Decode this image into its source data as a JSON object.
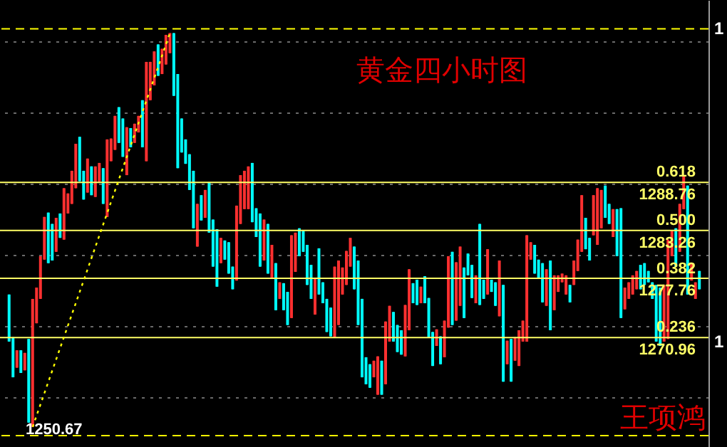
{
  "chart_data": {
    "type": "candlestick",
    "title": "黄金四小时图",
    "categories": [
      null,
      null,
      null,
      null,
      null,
      null,
      null,
      null,
      null,
      null,
      null,
      null,
      null,
      null,
      null,
      null,
      null,
      null,
      null,
      null,
      null,
      null,
      null,
      null,
      null,
      null,
      null,
      null,
      null,
      null,
      null,
      null,
      null,
      null,
      null,
      null,
      null,
      null,
      null,
      null,
      null,
      null,
      null,
      null,
      null,
      null,
      null,
      null,
      null,
      null,
      null,
      null,
      null,
      null,
      null,
      null,
      null,
      null,
      null,
      null,
      null,
      null,
      null,
      null,
      null,
      null,
      null,
      null,
      null,
      null,
      null,
      null,
      null,
      null,
      null,
      null,
      null,
      null,
      null,
      null,
      null,
      null,
      null,
      null,
      null,
      null,
      null,
      null,
      null,
      null,
      null,
      null,
      null,
      null,
      null,
      null,
      null,
      null,
      null,
      null,
      null,
      null,
      null,
      null,
      null,
      null,
      null,
      null,
      null,
      null,
      null,
      null,
      null,
      null,
      null,
      null,
      null,
      null,
      null,
      null,
      null,
      null,
      null,
      null,
      null,
      null,
      null,
      null,
      null,
      null,
      null,
      null,
      null,
      null,
      null,
      null,
      null,
      null,
      null,
      null,
      null,
      null,
      null,
      null,
      null,
      null,
      null,
      null,
      null,
      null,
      null,
      null,
      null,
      null,
      null,
      null,
      null,
      null,
      null,
      null,
      null,
      null,
      null,
      null,
      null,
      null,
      null,
      null,
      null,
      null,
      null,
      null,
      null,
      null,
      null,
      null,
      null
    ],
    "ohlc": [
      [
        1275.9,
        1275.9,
        1270.5,
        1270.5
      ],
      [
        1271.0,
        1271.0,
        1266.4,
        1266.4
      ],
      [
        1267.5,
        1269.5,
        1267.5,
        1269.5
      ],
      [
        1269.5,
        1269.5,
        1266.9,
        1266.9
      ],
      [
        1267.2,
        1269.2,
        1267.2,
        1269.2
      ],
      [
        1270.8,
        1270.8,
        1261.2,
        1261.2
      ],
      [
        1260.7,
        1275.4,
        1260.7,
        1275.4
      ],
      [
        1272.6,
        1276.7,
        1272.6,
        1276.7
      ],
      [
        1275.4,
        1280.3,
        1275.4,
        1280.3
      ],
      [
        1279.9,
        1284.8,
        1279.9,
        1284.8
      ],
      [
        1285.3,
        1285.3,
        1279.5,
        1279.5
      ],
      [
        1284.0,
        1284.0,
        1279.8,
        1279.8
      ],
      [
        1280.8,
        1284.7,
        1280.8,
        1284.7
      ],
      [
        1285.2,
        1285.2,
        1282.4,
        1282.4
      ],
      [
        1282.2,
        1288.1,
        1282.2,
        1288.1
      ],
      [
        1285.2,
        1287.5,
        1285.2,
        1287.5
      ],
      [
        1286.3,
        1290.1,
        1286.3,
        1290.1
      ],
      [
        1288.1,
        1293.2,
        1288.1,
        1293.2
      ],
      [
        1294.0,
        1294.0,
        1288.9,
        1288.9
      ],
      [
        1290.1,
        1290.1,
        1286.8,
        1286.8
      ],
      [
        1287.6,
        1291.5,
        1287.6,
        1291.5
      ],
      [
        1290.6,
        1290.6,
        1287.3,
        1287.3
      ],
      [
        1287.1,
        1290.6,
        1287.1,
        1290.6
      ],
      [
        1288.8,
        1291.0,
        1288.8,
        1291.0
      ],
      [
        1290.4,
        1290.4,
        1286.3,
        1286.3
      ],
      [
        1284.8,
        1293.7,
        1284.8,
        1293.7
      ],
      [
        1291.2,
        1293.8,
        1291.2,
        1293.8
      ],
      [
        1292.5,
        1296.4,
        1292.5,
        1296.4
      ],
      [
        1297.4,
        1297.4,
        1293.3,
        1293.3
      ],
      [
        1296.1,
        1296.1,
        1291.7,
        1291.7
      ],
      [
        1289.6,
        1295.1,
        1289.6,
        1295.1
      ],
      [
        1295.0,
        1295.0,
        1292.8,
        1292.8
      ],
      [
        1293.3,
        1295.5,
        1293.3,
        1295.5
      ],
      [
        1294.5,
        1296.4,
        1294.5,
        1296.4
      ],
      [
        1298.2,
        1298.2,
        1292.8,
        1292.8
      ],
      [
        1291.2,
        1302.6,
        1291.2,
        1302.6
      ],
      [
        1298.2,
        1302.6,
        1298.2,
        1302.6
      ],
      [
        1299.9,
        1303.8,
        1299.9,
        1303.8
      ],
      [
        1304.6,
        1304.6,
        1301.0,
        1301.0
      ],
      [
        1301.2,
        1304.1,
        1301.2,
        1304.1
      ],
      [
        1302.3,
        1305.7,
        1302.3,
        1305.7
      ],
      [
        1303.6,
        1305.9,
        1303.6,
        1305.9
      ],
      [
        1305.9,
        1305.9,
        1298.7,
        1298.7
      ],
      [
        1301.2,
        1301.2,
        1290.4,
        1290.4
      ],
      [
        1296.1,
        1296.1,
        1292.2,
        1292.2
      ],
      [
        1293.7,
        1293.7,
        1290.9,
        1290.9
      ],
      [
        1292.0,
        1292.0,
        1287.9,
        1287.9
      ],
      [
        1290.1,
        1290.1,
        1283.5,
        1283.5
      ],
      [
        1281.4,
        1286.3,
        1281.4,
        1286.3
      ],
      [
        1287.3,
        1287.3,
        1284.4,
        1284.4
      ],
      [
        1284.7,
        1287.9,
        1284.7,
        1287.9
      ],
      [
        1288.8,
        1288.8,
        1283.0,
        1283.0
      ],
      [
        1284.5,
        1284.5,
        1279.1,
        1279.1
      ],
      [
        1283.4,
        1283.4,
        1276.8,
        1276.8
      ],
      [
        1279.5,
        1282.4,
        1279.5,
        1282.4
      ],
      [
        1282.1,
        1282.1,
        1279.9,
        1279.9
      ],
      [
        1281.9,
        1281.9,
        1278.3,
        1278.3
      ],
      [
        1279.1,
        1279.1,
        1276.5,
        1276.5
      ],
      [
        1277.5,
        1286.1,
        1277.5,
        1286.1
      ],
      [
        1284.0,
        1289.6,
        1284.0,
        1289.6
      ],
      [
        1285.7,
        1290.1,
        1285.7,
        1290.1
      ],
      [
        1285.7,
        1290.6,
        1285.7,
        1290.6
      ],
      [
        1291.0,
        1291.0,
        1284.2,
        1284.2
      ],
      [
        1285.8,
        1285.8,
        1282.5,
        1282.5
      ],
      [
        1285.2,
        1285.2,
        1279.1,
        1279.1
      ],
      [
        1279.8,
        1284.5,
        1279.8,
        1284.5
      ],
      [
        1284.0,
        1284.0,
        1278.3,
        1278.3
      ],
      [
        1277.8,
        1281.6,
        1277.8,
        1281.6
      ],
      [
        1279.5,
        1279.5,
        1274.1,
        1274.1
      ],
      [
        1275.4,
        1277.3,
        1275.4,
        1277.3
      ],
      [
        1277.2,
        1277.2,
        1274.1,
        1274.1
      ],
      [
        1276.2,
        1276.2,
        1272.4,
        1272.4
      ],
      [
        1273.2,
        1282.7,
        1273.2,
        1282.7
      ],
      [
        1278.5,
        1283.0,
        1278.5,
        1283.0
      ],
      [
        1283.5,
        1283.5,
        1280.3,
        1280.3
      ],
      [
        1283.2,
        1283.2,
        1280.8,
        1280.8
      ],
      [
        1281.6,
        1281.6,
        1277.0,
        1277.0
      ],
      [
        1279.3,
        1279.3,
        1275.4,
        1275.4
      ],
      [
        1273.6,
        1277.8,
        1273.6,
        1277.8
      ],
      [
        1281.2,
        1281.2,
        1275.9,
        1275.9
      ],
      [
        1277.3,
        1277.3,
        1274.9,
        1274.9
      ],
      [
        1275.4,
        1275.4,
        1271.6,
        1271.6
      ],
      [
        1274.4,
        1274.4,
        1271.1,
        1271.1
      ],
      [
        1271.0,
        1279.1,
        1271.0,
        1279.1
      ],
      [
        1272.4,
        1279.8,
        1272.4,
        1279.8
      ],
      [
        1275.9,
        1279.0,
        1275.9,
        1279.0
      ],
      [
        1277.0,
        1280.9,
        1277.0,
        1280.9
      ],
      [
        1279.1,
        1282.4,
        1279.1,
        1282.4
      ],
      [
        1281.4,
        1281.4,
        1276.5,
        1276.5
      ],
      [
        1279.8,
        1279.8,
        1272.4,
        1272.4
      ],
      [
        1275.4,
        1275.4,
        1266.4,
        1266.4
      ],
      [
        1268.7,
        1268.7,
        1265.6,
        1265.6
      ],
      [
        1267.9,
        1267.9,
        1265.2,
        1265.2
      ],
      [
        1266.4,
        1268.3,
        1266.4,
        1268.3
      ],
      [
        1264.4,
        1268.8,
        1264.4,
        1268.8
      ],
      [
        1268.3,
        1268.3,
        1264.4,
        1264.4
      ],
      [
        1265.6,
        1272.8,
        1265.6,
        1272.8
      ],
      [
        1270.5,
        1274.6,
        1270.5,
        1274.6
      ],
      [
        1273.9,
        1273.9,
        1270.5,
        1270.5
      ],
      [
        1272.4,
        1272.4,
        1269.3,
        1269.3
      ],
      [
        1271.8,
        1271.8,
        1269.0,
        1269.0
      ],
      [
        1268.8,
        1274.7,
        1268.8,
        1274.7
      ],
      [
        1271.8,
        1278.8,
        1271.8,
        1278.8
      ],
      [
        1277.2,
        1277.2,
        1274.9,
        1274.9
      ],
      [
        1277.6,
        1277.6,
        1274.7,
        1274.7
      ],
      [
        1274.9,
        1276.8,
        1274.9,
        1276.8
      ],
      [
        1278.0,
        1278.0,
        1274.9,
        1274.9
      ],
      [
        1275.5,
        1275.5,
        1271.0,
        1271.0
      ],
      [
        1271.6,
        1271.6,
        1267.7,
        1267.7
      ],
      [
        1270.0,
        1271.9,
        1270.0,
        1271.9
      ],
      [
        1271.1,
        1271.1,
        1267.9,
        1267.9
      ],
      [
        1268.7,
        1272.9,
        1268.7,
        1272.9
      ],
      [
        1272.1,
        1280.3,
        1272.1,
        1280.3
      ],
      [
        1280.8,
        1280.8,
        1272.4,
        1272.4
      ],
      [
        1272.9,
        1279.6,
        1272.9,
        1279.6
      ],
      [
        1274.6,
        1281.4,
        1274.6,
        1281.4
      ],
      [
        1279.0,
        1279.0,
        1273.2,
        1273.2
      ],
      [
        1280.6,
        1280.6,
        1278.1,
        1278.1
      ],
      [
        1279.3,
        1279.3,
        1275.5,
        1275.5
      ],
      [
        1274.9,
        1278.1,
        1274.9,
        1278.1
      ],
      [
        1284.0,
        1284.0,
        1274.7,
        1274.7
      ],
      [
        1277.6,
        1277.6,
        1275.4,
        1275.4
      ],
      [
        1275.9,
        1281.1,
        1275.9,
        1281.1
      ],
      [
        1277.6,
        1277.6,
        1276.2,
        1276.2
      ],
      [
        1277.3,
        1277.3,
        1274.6,
        1274.6
      ],
      [
        1273.4,
        1279.8,
        1273.4,
        1279.8
      ],
      [
        1277.0,
        1277.0,
        1265.9,
        1265.9
      ],
      [
        1267.9,
        1270.6,
        1267.9,
        1270.6
      ],
      [
        1270.8,
        1270.8,
        1265.9,
        1265.9
      ],
      [
        1268.3,
        1271.0,
        1268.3,
        1271.0
      ],
      [
        1267.7,
        1271.8,
        1267.7,
        1271.8
      ],
      [
        1270.5,
        1272.9,
        1270.5,
        1272.9
      ],
      [
        1270.5,
        1282.7,
        1270.5,
        1282.7
      ],
      [
        1279.9,
        1281.9,
        1279.9,
        1281.9
      ],
      [
        1281.6,
        1281.6,
        1278.3,
        1278.3
      ],
      [
        1279.9,
        1279.9,
        1277.8,
        1277.8
      ],
      [
        1279.5,
        1279.5,
        1275.0,
        1275.0
      ],
      [
        1274.6,
        1278.8,
        1274.6,
        1278.8
      ],
      [
        1279.8,
        1279.8,
        1271.8,
        1271.8
      ],
      [
        1274.1,
        1278.1,
        1274.1,
        1278.1
      ],
      [
        1276.2,
        1278.1,
        1276.2,
        1278.1
      ],
      [
        1277.3,
        1278.3,
        1277.3,
        1278.3
      ],
      [
        1275.9,
        1278.1,
        1275.9,
        1278.1
      ],
      [
        1277.0,
        1277.0,
        1275.0,
        1275.0
      ],
      [
        1277.0,
        1279.8,
        1277.0,
        1279.8
      ],
      [
        1278.6,
        1282.2,
        1278.6,
        1282.2
      ],
      [
        1280.8,
        1287.3,
        1280.8,
        1287.3
      ],
      [
        1284.7,
        1284.7,
        1281.1,
        1281.1
      ],
      [
        1282.4,
        1282.4,
        1279.8,
        1279.8
      ],
      [
        1282.7,
        1287.3,
        1282.7,
        1287.3
      ],
      [
        1281.6,
        1288.1,
        1281.6,
        1288.1
      ],
      [
        1283.5,
        1287.9,
        1283.5,
        1287.9
      ],
      [
        1288.4,
        1288.4,
        1284.7,
        1284.7
      ],
      [
        1286.3,
        1286.3,
        1284.0,
        1284.0
      ],
      [
        1282.5,
        1285.7,
        1282.5,
        1285.7
      ],
      [
        1285.7,
        1285.7,
        1280.3,
        1280.3
      ],
      [
        1285.8,
        1285.8,
        1273.2,
        1273.2
      ],
      [
        1274.2,
        1276.7,
        1274.2,
        1276.7
      ],
      [
        1275.4,
        1277.3,
        1275.4,
        1277.3
      ],
      [
        1275.9,
        1278.1,
        1275.9,
        1278.1
      ],
      [
        1276.5,
        1278.6,
        1276.5,
        1278.6
      ],
      [
        1279.3,
        1279.3,
        1276.5,
        1276.5
      ],
      [
        1279.5,
        1279.5,
        1277.0,
        1277.0
      ],
      [
        1278.6,
        1278.6,
        1277.3,
        1277.3
      ],
      [
        1277.3,
        1277.3,
        1275.4,
        1275.4
      ],
      [
        1277.0,
        1277.0,
        1270.5,
        1270.5
      ],
      [
        1276.7,
        1276.7,
        1270.0,
        1270.0
      ],
      [
        1270.5,
        1277.0,
        1270.5,
        1277.0
      ],
      [
        1270.8,
        1282.2,
        1270.8,
        1282.2
      ],
      [
        1280.3,
        1283.2,
        1280.3,
        1283.2
      ],
      [
        1283.5,
        1283.5,
        1279.1,
        1279.1
      ],
      [
        1280.8,
        1286.3,
        1280.8,
        1286.3
      ],
      [
        1285.7,
        1289.6,
        1285.7,
        1289.6
      ],
      [
        1288.4,
        1288.4,
        1275.9,
        1275.9
      ],
      [
        1277.5,
        1279.5,
        1277.5,
        1279.5
      ],
      [
        1275.4,
        1277.3,
        1275.4,
        1277.3
      ],
      [
        1278.6,
        1278.6,
        1276.5,
        1276.5
      ]
    ],
    "colors": [
      "#00ffff",
      "#00ffff",
      "#ff3030",
      "#00ffff",
      "#ff3030",
      "#00ffff",
      "#ff3030",
      "#ff3030",
      "#ff3030",
      "#ff3030",
      "#00ffff",
      "#00ffff",
      "#ff3030",
      "#00ffff",
      "#ff3030",
      "#ff3030",
      "#ff3030",
      "#ff3030",
      "#00ffff",
      "#00ffff",
      "#ff3030",
      "#00ffff",
      "#ff3030",
      "#ff3030",
      "#00ffff",
      "#ff3030",
      "#ff3030",
      "#ff3030",
      "#00ffff",
      "#00ffff",
      "#ff3030",
      "#00ffff",
      "#ff3030",
      "#ff3030",
      "#00ffff",
      "#ff3030",
      "#ff3030",
      "#ff3030",
      "#00ffff",
      "#ff3030",
      "#ff3030",
      "#ff3030",
      "#00ffff",
      "#00ffff",
      "#00ffff",
      "#00ffff",
      "#00ffff",
      "#00ffff",
      "#ff3030",
      "#00ffff",
      "#ff3030",
      "#00ffff",
      "#00ffff",
      "#00ffff",
      "#ff3030",
      "#00ffff",
      "#00ffff",
      "#00ffff",
      "#ff3030",
      "#ff3030",
      "#ff3030",
      "#ff3030",
      "#00ffff",
      "#00ffff",
      "#00ffff",
      "#ff3030",
      "#00ffff",
      "#ff3030",
      "#00ffff",
      "#ff3030",
      "#00ffff",
      "#00ffff",
      "#ff3030",
      "#ff3030",
      "#00ffff",
      "#00ffff",
      "#00ffff",
      "#00ffff",
      "#ff3030",
      "#00ffff",
      "#00ffff",
      "#00ffff",
      "#00ffff",
      "#ff3030",
      "#ff3030",
      "#ff3030",
      "#ff3030",
      "#ff3030",
      "#00ffff",
      "#00ffff",
      "#00ffff",
      "#00ffff",
      "#00ffff",
      "#ff3030",
      "#ff3030",
      "#00ffff",
      "#ff3030",
      "#ff3030",
      "#00ffff",
      "#00ffff",
      "#00ffff",
      "#ff3030",
      "#ff3030",
      "#00ffff",
      "#00ffff",
      "#ff3030",
      "#00ffff",
      "#00ffff",
      "#00ffff",
      "#ff3030",
      "#00ffff",
      "#ff3030",
      "#ff3030",
      "#00ffff",
      "#ff3030",
      "#ff3030",
      "#00ffff",
      "#00ffff",
      "#00ffff",
      "#ff3030",
      "#00ffff",
      "#00ffff",
      "#ff3030",
      "#00ffff",
      "#00ffff",
      "#ff3030",
      "#00ffff",
      "#ff3030",
      "#00ffff",
      "#ff3030",
      "#ff3030",
      "#ff3030",
      "#ff3030",
      "#ff3030",
      "#00ffff",
      "#00ffff",
      "#00ffff",
      "#ff3030",
      "#00ffff",
      "#ff3030",
      "#ff3030",
      "#ff3030",
      "#ff3030",
      "#00ffff",
      "#ff3030",
      "#ff3030",
      "#ff3030",
      "#00ffff",
      "#00ffff",
      "#ff3030",
      "#ff3030",
      "#ff3030",
      "#00ffff",
      "#00ffff",
      "#ff3030",
      "#00ffff",
      "#00ffff",
      "#ff3030",
      "#ff3030",
      "#ff3030",
      "#ff3030",
      "#00ffff",
      "#00ffff",
      "#00ffff",
      "#00ffff",
      "#00ffff",
      "#00ffff",
      "#ff3030",
      "#ff3030",
      "#ff3030",
      "#00ffff",
      "#ff3030",
      "#ff3030",
      "#00ffff",
      "#ff3030",
      "#ff3030",
      "#00ffff"
    ],
    "series": [
      {
        "type": "line",
        "color": "#ffff00",
        "line_style": "dotted",
        "values": [
          null,
          null,
          null,
          null,
          null,
          null,
          1260.7,
          null,
          null,
          null,
          null,
          null,
          null,
          null,
          null,
          null,
          null,
          null,
          null,
          null,
          null,
          null,
          null,
          null,
          null,
          null,
          null,
          null,
          null,
          null,
          null,
          null,
          null,
          null,
          null,
          null,
          null,
          null,
          null,
          null,
          null,
          1305.9,
          null,
          null,
          null,
          null,
          null,
          null,
          null,
          null,
          null,
          null,
          null,
          null,
          null,
          null,
          null,
          null,
          null,
          null,
          null,
          null,
          null,
          null,
          null,
          null,
          null,
          null,
          null,
          null,
          null,
          null,
          null,
          null,
          null,
          null,
          null,
          null,
          null,
          null,
          null,
          null,
          null,
          null,
          null,
          null,
          null,
          null,
          null,
          null,
          null,
          null,
          null,
          null,
          null,
          null,
          null,
          null,
          null,
          null,
          null,
          null,
          null,
          null,
          null,
          null,
          null,
          null,
          null,
          null,
          null,
          null,
          null,
          null,
          null,
          null,
          null,
          null,
          null,
          null,
          null,
          null,
          null,
          null,
          null,
          null,
          null,
          null,
          null,
          null,
          null,
          null,
          null,
          null,
          null,
          null,
          null,
          null,
          null,
          null,
          null,
          null,
          null,
          null,
          null,
          null,
          null,
          null,
          null,
          null,
          null,
          null,
          null,
          null,
          null,
          null,
          null,
          null,
          null,
          null,
          null,
          null,
          null,
          null,
          null,
          null,
          null,
          null,
          null,
          null,
          null,
          null,
          null,
          null,
          null,
          null,
          null
        ]
      }
    ],
    "ylim": [
      1258.4,
      1309.7
    ],
    "yticks": [
      {
        "value": 1264.1,
        "label": null
      },
      {
        "value": 1272.3,
        "label": null
      },
      {
        "value": 1280.4,
        "label": null
      },
      {
        "value": 1288.6,
        "label": null
      },
      {
        "value": 1296.8,
        "label": null
      },
      {
        "value": 1304.9,
        "label": null
      }
    ],
    "grid": "y",
    "ref_lines": [
      {
        "axis": "y",
        "value": 1288.76,
        "label": "1288.76",
        "color": "#ffff66",
        "line_style": "solid"
      },
      {
        "axis": "y",
        "value": 1283.26,
        "label": "1283.26",
        "color": "#ffff66",
        "line_style": "solid"
      },
      {
        "axis": "y",
        "value": 1277.76,
        "label": "1277.76",
        "color": "#ffff66",
        "line_style": "solid"
      },
      {
        "axis": "y",
        "value": 1270.96,
        "label": "1270.96",
        "color": "#ffff66",
        "line_style": "solid"
      },
      {
        "axis": "y",
        "value": 1306.4,
        "color": "#ffff00",
        "line_style": "dashed"
      },
      {
        "axis": "y",
        "value": 1259.7,
        "color": "#ffff00",
        "line_style": "dashed"
      }
    ],
    "annotations": [
      "0.618",
      "0.500",
      "0.382",
      "0.236",
      "1250.67",
      "1",
      "1",
      "王项鸿"
    ]
  }
}
